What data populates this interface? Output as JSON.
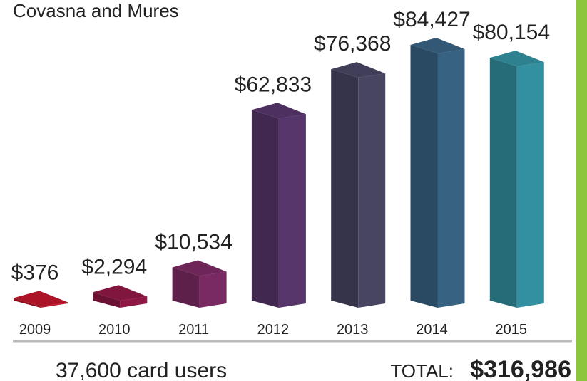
{
  "chart_data": {
    "type": "bar3d",
    "title": "Covasna and Mures",
    "categories": [
      "2009",
      "2010",
      "2011",
      "2012",
      "2013",
      "2014",
      "2015"
    ],
    "values": [
      376,
      2294,
      10534,
      62833,
      76368,
      84427,
      80154
    ],
    "value_labels": [
      "$376",
      "$2,294",
      "$10,534",
      "$62,833",
      "$76,368",
      "$84,427",
      "$80,154"
    ],
    "colors": [
      "#c0152a",
      "#8e1744",
      "#7a2a62",
      "#55356a",
      "#484563",
      "#376282",
      "#3390a0"
    ]
  },
  "footer": {
    "users": "37,600 card users",
    "total_label": "TOTAL:",
    "total_value": "$316,986"
  }
}
